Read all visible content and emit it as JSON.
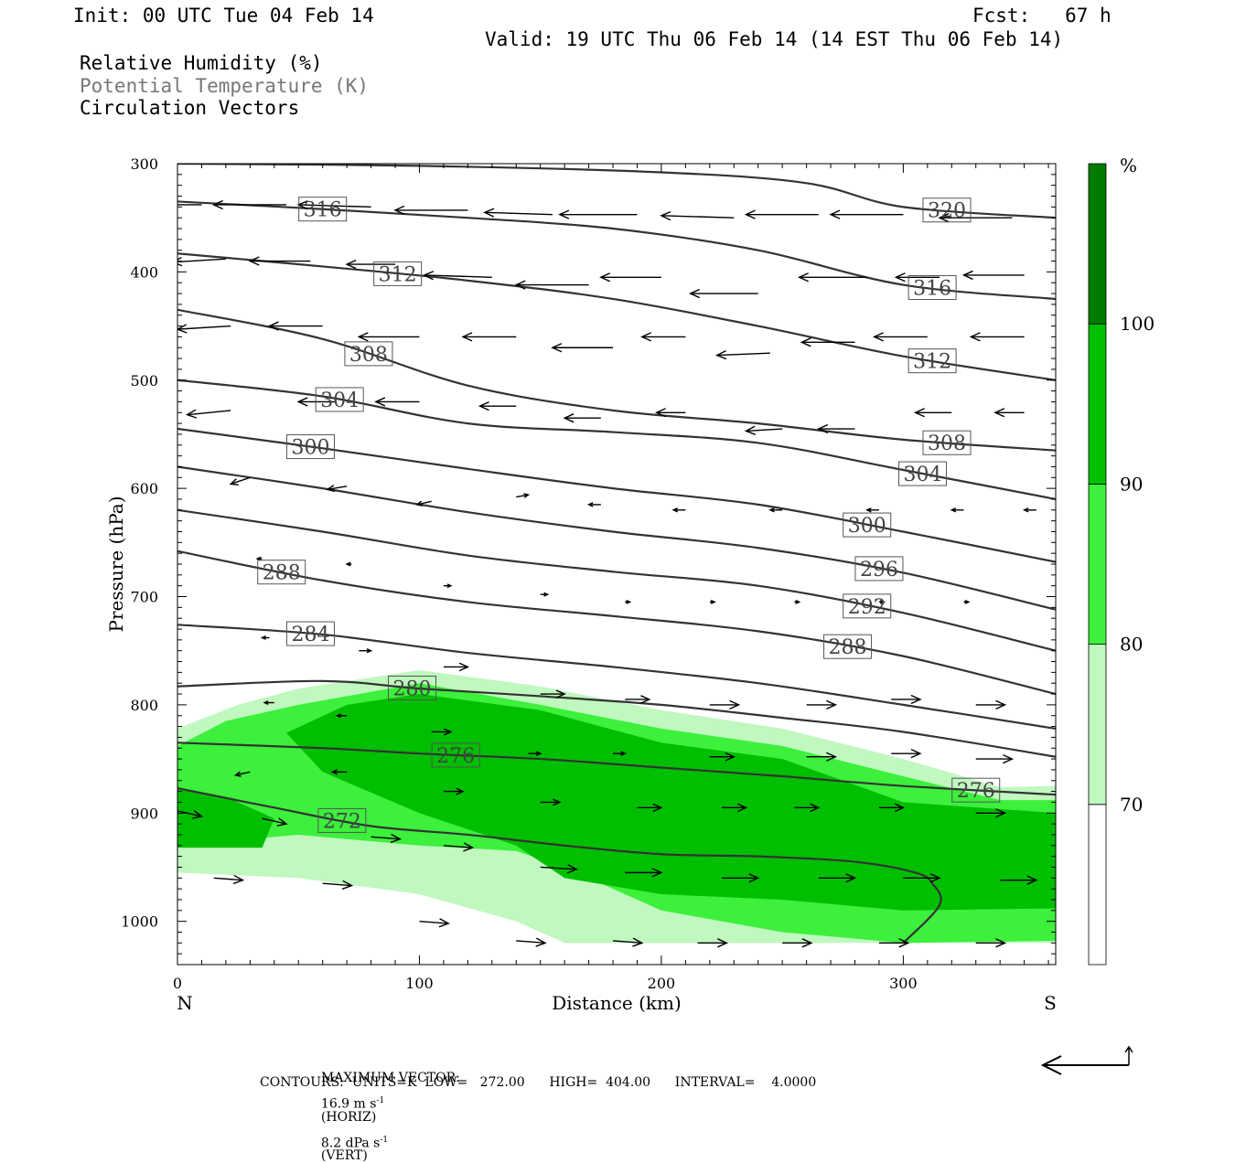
{
  "header": {
    "init": "Init: 00 UTC Tue 04 Feb 14",
    "fcst": "Fcst:   67 h",
    "valid": "Valid: 19 UTC Thu 06 Feb 14 (14 EST Thu 06 Feb 14)",
    "field1": "Relative Humidity (%)",
    "field2": "Potential Temperature (K)",
    "field3": "Circulation Vectors"
  },
  "footer": {
    "max_vector_label": "MAXIMUM VECTOR:",
    "max_horiz": "16.9 m s",
    "horiz_unit": "(HORIZ)",
    "max_vert": "8.2 dPa s",
    "vert_unit": "(VERT)",
    "exp": "-1",
    "contours": "CONTOURS:  UNITS=K  LOW=   272.00      HIGH=  404.00      INTERVAL=    4.0000"
  },
  "colors": {
    "rh_70_80": "#c0f8c0",
    "rh_80_90": "#3cf03c",
    "rh_90_100": "#00be00",
    "rh_100": "#007d00",
    "theta_line": "#333333"
  },
  "chart_data": {
    "type": "cross-section",
    "xlabel": "Distance (km)",
    "ylabel": "Pressure (hPa)",
    "xlim": [
      0,
      363
    ],
    "ylim": [
      1040,
      300
    ],
    "x_ticks": [
      0,
      100,
      200,
      300
    ],
    "y_ticks": [
      300,
      400,
      500,
      600,
      700,
      800,
      900,
      1000
    ],
    "left_end_label": "N",
    "right_end_label": "S",
    "colorbar": {
      "unit": "%",
      "levels": [
        70,
        80,
        90,
        100
      ],
      "colors": [
        "#ffffff",
        "#c0f8c0",
        "#3cf03c",
        "#00be00",
        "#007d00"
      ]
    },
    "rh_regions": [
      {
        "level": 70,
        "points": [
          [
            0,
            822
          ],
          [
            25,
            800
          ],
          [
            50,
            785
          ],
          [
            100,
            768
          ],
          [
            150,
            783
          ],
          [
            200,
            805
          ],
          [
            250,
            822
          ],
          [
            300,
            850
          ],
          [
            340,
            876
          ],
          [
            363,
            875
          ],
          [
            363,
            1020
          ],
          [
            300,
            1020
          ],
          [
            250,
            1020
          ],
          [
            200,
            1020
          ],
          [
            160,
            1020
          ],
          [
            140,
            1000
          ],
          [
            100,
            975
          ],
          [
            50,
            960
          ],
          [
            0,
            955
          ]
        ]
      },
      {
        "level": 80,
        "points": [
          [
            0,
            838
          ],
          [
            20,
            815
          ],
          [
            50,
            800
          ],
          [
            100,
            780
          ],
          [
            150,
            800
          ],
          [
            200,
            822
          ],
          [
            250,
            838
          ],
          [
            300,
            866
          ],
          [
            340,
            888
          ],
          [
            363,
            888
          ],
          [
            363,
            1018
          ],
          [
            300,
            1020
          ],
          [
            250,
            1010
          ],
          [
            200,
            990
          ],
          [
            160,
            950
          ],
          [
            140,
            935
          ],
          [
            100,
            930
          ],
          [
            50,
            920
          ],
          [
            0,
            930
          ]
        ]
      },
      {
        "level": 80,
        "points": [
          [
            50,
            862
          ],
          [
            100,
            860
          ],
          [
            130,
            865
          ],
          [
            140,
            880
          ],
          [
            120,
            900
          ],
          [
            100,
            920
          ],
          [
            60,
            910
          ],
          [
            40,
            900
          ],
          [
            40,
            880
          ]
        ]
      },
      {
        "level": 90,
        "points": [
          [
            45,
            826
          ],
          [
            70,
            800
          ],
          [
            100,
            790
          ],
          [
            150,
            805
          ],
          [
            200,
            835
          ],
          [
            250,
            850
          ],
          [
            300,
            890
          ],
          [
            363,
            900
          ],
          [
            363,
            988
          ],
          [
            300,
            990
          ],
          [
            250,
            980
          ],
          [
            200,
            975
          ],
          [
            160,
            960
          ],
          [
            140,
            930
          ],
          [
            100,
            900
          ],
          [
            60,
            862
          ]
        ]
      },
      {
        "level": 90,
        "points": [
          [
            0,
            878
          ],
          [
            20,
            885
          ],
          [
            40,
            905
          ],
          [
            35,
            932
          ],
          [
            0,
            932
          ]
        ]
      }
    ],
    "theta": [
      {
        "value": 272,
        "label_x": 68,
        "points": [
          [
            0,
            877
          ],
          [
            40,
            895
          ],
          [
            80,
            912
          ],
          [
            120,
            920
          ],
          [
            160,
            930
          ],
          [
            200,
            938
          ],
          [
            240,
            940
          ],
          [
            280,
            945
          ],
          [
            305,
            955
          ],
          [
            312,
            965
          ],
          [
            315,
            985
          ],
          [
            300,
            1020
          ]
        ]
      },
      {
        "value": 276,
        "label_x": 115,
        "label_x2": 330,
        "points": [
          [
            0,
            835
          ],
          [
            60,
            840
          ],
          [
            100,
            845
          ],
          [
            150,
            850
          ],
          [
            200,
            858
          ],
          [
            250,
            866
          ],
          [
            300,
            875
          ],
          [
            363,
            883
          ]
        ]
      },
      {
        "value": 280,
        "label_x": 97,
        "points": [
          [
            0,
            783
          ],
          [
            60,
            778
          ],
          [
            100,
            785
          ],
          [
            150,
            792
          ],
          [
            200,
            800
          ],
          [
            250,
            812
          ],
          [
            300,
            825
          ],
          [
            363,
            848
          ]
        ]
      },
      {
        "value": 284,
        "label_x": 55,
        "points": [
          [
            0,
            726
          ],
          [
            60,
            735
          ],
          [
            120,
            752
          ],
          [
            180,
            765
          ],
          [
            240,
            780
          ],
          [
            300,
            800
          ],
          [
            363,
            822
          ]
        ]
      },
      {
        "value": 288,
        "label_x": 43,
        "label_x2": 277,
        "points": [
          [
            0,
            658
          ],
          [
            60,
            685
          ],
          [
            120,
            705
          ],
          [
            180,
            718
          ],
          [
            240,
            732
          ],
          [
            300,
            755
          ],
          [
            363,
            790
          ]
        ]
      },
      {
        "value": 292,
        "label_x": 285,
        "points": [
          [
            0,
            620
          ],
          [
            60,
            640
          ],
          [
            120,
            662
          ],
          [
            180,
            677
          ],
          [
            240,
            690
          ],
          [
            300,
            715
          ],
          [
            363,
            750
          ]
        ]
      },
      {
        "value": 296,
        "label_x": 290,
        "points": [
          [
            0,
            580
          ],
          [
            60,
            600
          ],
          [
            120,
            622
          ],
          [
            180,
            640
          ],
          [
            240,
            655
          ],
          [
            300,
            678
          ],
          [
            363,
            712
          ]
        ]
      },
      {
        "value": 300,
        "label_x": 55,
        "label_x2": 285,
        "points": [
          [
            0,
            545
          ],
          [
            60,
            563
          ],
          [
            120,
            582
          ],
          [
            180,
            600
          ],
          [
            240,
            615
          ],
          [
            300,
            640
          ],
          [
            363,
            668
          ]
        ]
      },
      {
        "value": 304,
        "label_x": 67,
        "label_x2": 308,
        "points": [
          [
            0,
            500
          ],
          [
            60,
            515
          ],
          [
            120,
            540
          ],
          [
            180,
            548
          ],
          [
            240,
            558
          ],
          [
            300,
            583
          ],
          [
            363,
            610
          ]
        ]
      },
      {
        "value": 308,
        "label_x": 79,
        "label_x2": 318,
        "points": [
          [
            0,
            435
          ],
          [
            60,
            462
          ],
          [
            120,
            505
          ],
          [
            180,
            528
          ],
          [
            240,
            540
          ],
          [
            300,
            555
          ],
          [
            363,
            565
          ]
        ]
      },
      {
        "value": 312,
        "label_x": 91,
        "label_x2": 312,
        "points": [
          [
            0,
            383
          ],
          [
            60,
            395
          ],
          [
            120,
            408
          ],
          [
            180,
            425
          ],
          [
            240,
            450
          ],
          [
            300,
            478
          ],
          [
            363,
            500
          ]
        ]
      },
      {
        "value": 316,
        "label_x": 60,
        "label_x2": 312,
        "points": [
          [
            0,
            335
          ],
          [
            60,
            342
          ],
          [
            120,
            350
          ],
          [
            180,
            360
          ],
          [
            240,
            380
          ],
          [
            300,
            412
          ],
          [
            363,
            425
          ]
        ]
      },
      {
        "value": 320,
        "label_x": 318,
        "points": [
          [
            0,
            300
          ],
          [
            100,
            302
          ],
          [
            200,
            308
          ],
          [
            260,
            318
          ],
          [
            300,
            340
          ],
          [
            363,
            350
          ]
        ]
      }
    ],
    "vectors": [
      [
        10,
        338,
        -28,
        0
      ],
      [
        45,
        338,
        -30,
        0
      ],
      [
        80,
        340,
        -30,
        -2
      ],
      [
        120,
        343,
        -30,
        0
      ],
      [
        155,
        347,
        -28,
        -2
      ],
      [
        190,
        347,
        -32,
        0
      ],
      [
        230,
        350,
        -30,
        -2
      ],
      [
        265,
        347,
        -30,
        0
      ],
      [
        300,
        347,
        -30,
        0
      ],
      [
        345,
        350,
        -30,
        0
      ],
      [
        20,
        388,
        -22,
        3
      ],
      [
        55,
        390,
        -25,
        0
      ],
      [
        90,
        393,
        -20,
        0
      ],
      [
        130,
        405,
        -28,
        -2
      ],
      [
        170,
        412,
        -30,
        0
      ],
      [
        200,
        405,
        -25,
        0
      ],
      [
        240,
        420,
        -28,
        0
      ],
      [
        285,
        405,
        -28,
        0
      ],
      [
        315,
        405,
        -18,
        0
      ],
      [
        350,
        403,
        -25,
        0
      ],
      [
        22,
        450,
        -22,
        3
      ],
      [
        60,
        450,
        -22,
        0
      ],
      [
        100,
        460,
        -25,
        0
      ],
      [
        140,
        460,
        -22,
        0
      ],
      [
        180,
        470,
        -25,
        0
      ],
      [
        210,
        460,
        -18,
        0
      ],
      [
        245,
        475,
        -22,
        2
      ],
      [
        280,
        465,
        -22,
        0
      ],
      [
        310,
        460,
        -22,
        0
      ],
      [
        350,
        460,
        -22,
        0
      ],
      [
        22,
        528,
        -18,
        4
      ],
      [
        65,
        520,
        -15,
        0
      ],
      [
        100,
        520,
        -18,
        0
      ],
      [
        140,
        524,
        -15,
        0
      ],
      [
        175,
        535,
        -15,
        0
      ],
      [
        210,
        530,
        -12,
        0
      ],
      [
        250,
        545,
        -15,
        2
      ],
      [
        280,
        545,
        -15,
        0
      ],
      [
        320,
        530,
        -15,
        0
      ],
      [
        350,
        530,
        -12,
        0
      ],
      [
        30,
        590,
        -8,
        6
      ],
      [
        70,
        598,
        -8,
        3
      ],
      [
        105,
        612,
        -6,
        3
      ],
      [
        140,
        608,
        5,
        -2
      ],
      [
        175,
        615,
        -5,
        0
      ],
      [
        210,
        620,
        -5,
        0
      ],
      [
        250,
        620,
        -5,
        0
      ],
      [
        290,
        620,
        -5,
        0
      ],
      [
        325,
        620,
        -5,
        0
      ],
      [
        355,
        620,
        -5,
        0
      ],
      [
        35,
        665,
        -2,
        0
      ],
      [
        72,
        670,
        -2,
        0
      ],
      [
        110,
        690,
        3,
        0
      ],
      [
        150,
        698,
        3,
        0
      ],
      [
        185,
        705,
        2,
        0
      ],
      [
        220,
        705,
        2,
        0
      ],
      [
        255,
        705,
        2,
        0
      ],
      [
        290,
        705,
        2,
        0
      ],
      [
        325,
        705,
        2,
        0
      ],
      [
        38,
        738,
        -3,
        0
      ],
      [
        75,
        750,
        5,
        0
      ],
      [
        110,
        765,
        10,
        0
      ],
      [
        150,
        790,
        10,
        0
      ],
      [
        185,
        795,
        10,
        0
      ],
      [
        220,
        800,
        12,
        0
      ],
      [
        260,
        800,
        12,
        0
      ],
      [
        295,
        795,
        12,
        0
      ],
      [
        330,
        800,
        12,
        0
      ],
      [
        40,
        798,
        -4,
        0
      ],
      [
        70,
        810,
        -4,
        0
      ],
      [
        105,
        825,
        8,
        0
      ],
      [
        145,
        845,
        5,
        0
      ],
      [
        180,
        845,
        5,
        0
      ],
      [
        220,
        848,
        10,
        0
      ],
      [
        260,
        848,
        12,
        0
      ],
      [
        295,
        845,
        12,
        0
      ],
      [
        330,
        850,
        15,
        0
      ],
      [
        30,
        862,
        -6,
        3
      ],
      [
        70,
        862,
        -6,
        0
      ],
      [
        110,
        880,
        8,
        0
      ],
      [
        150,
        890,
        8,
        0
      ],
      [
        190,
        895,
        10,
        0
      ],
      [
        225,
        895,
        10,
        0
      ],
      [
        255,
        895,
        10,
        0
      ],
      [
        290,
        895,
        10,
        0
      ],
      [
        330,
        900,
        12,
        0
      ],
      [
        0,
        898,
        10,
        5
      ],
      [
        35,
        905,
        10,
        5
      ],
      [
        80,
        922,
        12,
        2
      ],
      [
        110,
        930,
        12,
        2
      ],
      [
        150,
        950,
        15,
        2
      ],
      [
        185,
        955,
        15,
        0
      ],
      [
        225,
        960,
        15,
        0
      ],
      [
        265,
        960,
        15,
        0
      ],
      [
        300,
        960,
        15,
        0
      ],
      [
        340,
        962,
        15,
        0
      ],
      [
        15,
        960,
        12,
        2
      ],
      [
        60,
        965,
        12,
        2
      ],
      [
        100,
        1000,
        12,
        2
      ],
      [
        140,
        1018,
        12,
        2
      ],
      [
        180,
        1018,
        12,
        2
      ],
      [
        215,
        1020,
        12,
        0
      ],
      [
        250,
        1020,
        12,
        0
      ],
      [
        290,
        1020,
        12,
        0
      ],
      [
        330,
        1020,
        12,
        0
      ]
    ]
  }
}
